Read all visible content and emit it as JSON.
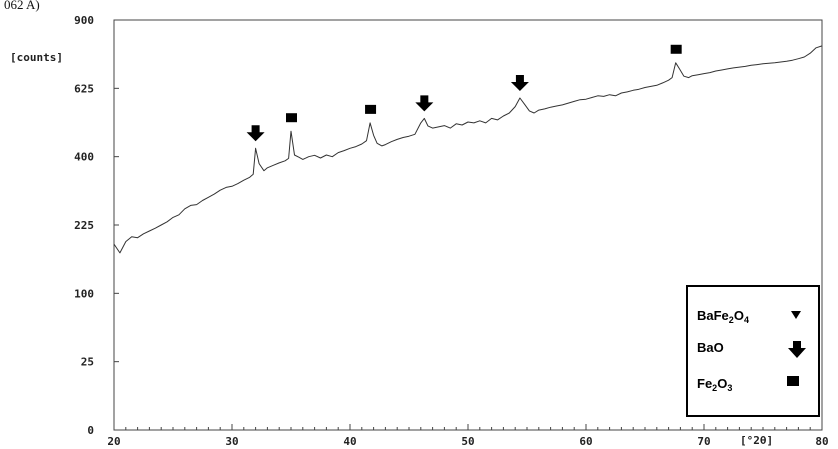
{
  "header_fragment": "062 A)",
  "chart_data": {
    "type": "line",
    "xlabel": "[°2θ]",
    "ylabel": "[counts]",
    "x_range": [
      20,
      80
    ],
    "y_sqrt_scale": true,
    "y_ticks": [
      0,
      25,
      100,
      225,
      400,
      625,
      900
    ],
    "y_tick_labels": [
      "0",
      "25",
      "100",
      "225",
      "400",
      "625",
      "900"
    ],
    "x_ticks": [
      20,
      30,
      40,
      50,
      60,
      70,
      80
    ],
    "x_tick_labels": [
      "20",
      "30",
      "40",
      "50",
      "60",
      "70",
      "80"
    ],
    "series": [
      {
        "points": [
          [
            20.0,
            185
          ],
          [
            20.5,
            168
          ],
          [
            21.0,
            190
          ],
          [
            21.5,
            200
          ],
          [
            22.0,
            198
          ],
          [
            22.5,
            206
          ],
          [
            23.0,
            212
          ],
          [
            23.5,
            218
          ],
          [
            24.0,
            225
          ],
          [
            24.5,
            232
          ],
          [
            25.0,
            242
          ],
          [
            25.5,
            248
          ],
          [
            26.0,
            262
          ],
          [
            26.5,
            270
          ],
          [
            27.0,
            272
          ],
          [
            27.5,
            282
          ],
          [
            28.0,
            290
          ],
          [
            28.5,
            298
          ],
          [
            29.0,
            308
          ],
          [
            29.5,
            315
          ],
          [
            30.0,
            318
          ],
          [
            30.5,
            325
          ],
          [
            31.0,
            334
          ],
          [
            31.5,
            342
          ],
          [
            31.8,
            350
          ],
          [
            32.0,
            425
          ],
          [
            32.3,
            380
          ],
          [
            32.7,
            360
          ],
          [
            33.0,
            368
          ],
          [
            33.5,
            375
          ],
          [
            34.0,
            382
          ],
          [
            34.5,
            388
          ],
          [
            34.8,
            395
          ],
          [
            35.0,
            478
          ],
          [
            35.3,
            405
          ],
          [
            35.7,
            398
          ],
          [
            36.0,
            392
          ],
          [
            36.5,
            400
          ],
          [
            37.0,
            404
          ],
          [
            37.5,
            396
          ],
          [
            38.0,
            405
          ],
          [
            38.5,
            400
          ],
          [
            39.0,
            412
          ],
          [
            39.5,
            418
          ],
          [
            40.0,
            425
          ],
          [
            40.5,
            430
          ],
          [
            41.0,
            438
          ],
          [
            41.4,
            448
          ],
          [
            41.7,
            505
          ],
          [
            42.0,
            465
          ],
          [
            42.3,
            440
          ],
          [
            42.7,
            432
          ],
          [
            43.0,
            436
          ],
          [
            43.5,
            445
          ],
          [
            44.0,
            452
          ],
          [
            44.5,
            458
          ],
          [
            45.0,
            462
          ],
          [
            45.5,
            468
          ],
          [
            46.0,
            505
          ],
          [
            46.3,
            520
          ],
          [
            46.6,
            495
          ],
          [
            47.0,
            488
          ],
          [
            47.5,
            492
          ],
          [
            48.0,
            496
          ],
          [
            48.5,
            488
          ],
          [
            49.0,
            502
          ],
          [
            49.5,
            498
          ],
          [
            50.0,
            508
          ],
          [
            50.5,
            505
          ],
          [
            51.0,
            512
          ],
          [
            51.5,
            505
          ],
          [
            52.0,
            520
          ],
          [
            52.5,
            515
          ],
          [
            53.0,
            528
          ],
          [
            53.5,
            538
          ],
          [
            54.0,
            560
          ],
          [
            54.4,
            590
          ],
          [
            54.8,
            568
          ],
          [
            55.2,
            545
          ],
          [
            55.6,
            538
          ],
          [
            56.0,
            548
          ],
          [
            56.5,
            552
          ],
          [
            57.0,
            558
          ],
          [
            57.5,
            562
          ],
          [
            58.0,
            566
          ],
          [
            58.5,
            572
          ],
          [
            59.0,
            578
          ],
          [
            59.5,
            584
          ],
          [
            60.0,
            586
          ],
          [
            60.5,
            592
          ],
          [
            61.0,
            598
          ],
          [
            61.5,
            596
          ],
          [
            62.0,
            602
          ],
          [
            62.5,
            598
          ],
          [
            63.0,
            608
          ],
          [
            63.5,
            612
          ],
          [
            64.0,
            618
          ],
          [
            64.5,
            622
          ],
          [
            65.0,
            628
          ],
          [
            65.5,
            632
          ],
          [
            66.0,
            636
          ],
          [
            66.5,
            645
          ],
          [
            67.0,
            655
          ],
          [
            67.3,
            665
          ],
          [
            67.6,
            722
          ],
          [
            67.9,
            700
          ],
          [
            68.3,
            670
          ],
          [
            68.7,
            665
          ],
          [
            69.0,
            672
          ],
          [
            69.5,
            676
          ],
          [
            70.0,
            680
          ],
          [
            70.5,
            684
          ],
          [
            71.0,
            690
          ],
          [
            71.5,
            694
          ],
          [
            72.0,
            698
          ],
          [
            72.5,
            702
          ],
          [
            73.0,
            705
          ],
          [
            73.5,
            708
          ],
          [
            74.0,
            712
          ],
          [
            74.5,
            715
          ],
          [
            75.0,
            718
          ],
          [
            75.5,
            720
          ],
          [
            76.0,
            722
          ],
          [
            76.5,
            725
          ],
          [
            77.0,
            728
          ],
          [
            77.5,
            732
          ],
          [
            78.0,
            738
          ],
          [
            78.5,
            745
          ],
          [
            79.0,
            760
          ],
          [
            79.5,
            782
          ],
          [
            80.0,
            790
          ]
        ]
      }
    ],
    "markers": [
      {
        "phase": "BaO",
        "shape": "arrow",
        "x": 32.0,
        "y": 425
      },
      {
        "phase": "Fe2O3",
        "shape": "square",
        "x": 35.0,
        "y": 478
      },
      {
        "phase": "Fe2O3",
        "shape": "square",
        "x": 41.7,
        "y": 505
      },
      {
        "phase": "BaO",
        "shape": "arrow",
        "x": 46.3,
        "y": 520
      },
      {
        "phase": "BaO",
        "shape": "arrow",
        "x": 54.4,
        "y": 590
      },
      {
        "phase": "Fe2O3",
        "shape": "square",
        "x": 67.6,
        "y": 722
      }
    ],
    "legend": {
      "placement": "bottom-right",
      "entries": [
        {
          "label_main": "BaFe",
          "sub1": "2",
          "mid": "O",
          "sub2": "4",
          "symbol": "triangle-down"
        },
        {
          "label_main": "BaO",
          "sub1": "",
          "mid": "",
          "sub2": "",
          "symbol": "arrow-down"
        },
        {
          "label_main": "Fe",
          "sub1": "2",
          "mid": "O",
          "sub2": "3",
          "symbol": "square"
        }
      ]
    },
    "colors": {
      "line": "#333333",
      "marker": "#000000",
      "axis": "#444444"
    }
  }
}
